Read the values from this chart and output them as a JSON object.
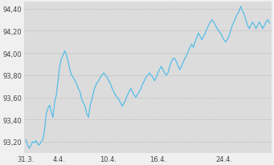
{
  "y_min": 93.1,
  "y_max": 94.46,
  "yticks": [
    93.2,
    93.4,
    93.6,
    93.8,
    94.0,
    94.2,
    94.4
  ],
  "ytick_labels": [
    "93,20",
    "93,40",
    "93,60",
    "93,80",
    "94,00",
    "94,20",
    "94,40"
  ],
  "xtick_labels": [
    "31.3.",
    "4.4.",
    "10.4.",
    "16.4.",
    "24.4."
  ],
  "xtick_positions": [
    0,
    4,
    11,
    18,
    26
  ],
  "line_color": "#55bde8",
  "bg_color": "#f0f0f0",
  "plot_bg": "#f0f0f0",
  "grid_color": "#bbbbbb",
  "stripe_color": "#dcdcdc",
  "stripe_ranges": [
    [
      1.5,
      3.5
    ],
    [
      6.5,
      8.5
    ],
    [
      8.5,
      11.5
    ],
    [
      13.5,
      15.5
    ],
    [
      15.5,
      18.5
    ],
    [
      20.5,
      22.5
    ],
    [
      22.5,
      25.5
    ],
    [
      27.5,
      29.5
    ]
  ],
  "n_days": 30,
  "y_values": [
    93.22,
    93.17,
    93.14,
    93.17,
    93.2,
    93.19,
    93.21,
    93.18,
    93.17,
    93.2,
    93.22,
    93.3,
    93.45,
    93.5,
    93.53,
    93.47,
    93.42,
    93.56,
    93.62,
    93.75,
    93.88,
    93.95,
    93.98,
    94.02,
    93.98,
    93.92,
    93.85,
    93.8,
    93.78,
    93.75,
    93.72,
    93.68,
    93.65,
    93.58,
    93.55,
    93.52,
    93.45,
    93.42,
    93.53,
    93.58,
    93.65,
    93.7,
    93.73,
    93.75,
    93.78,
    93.8,
    93.82,
    93.8,
    93.78,
    93.75,
    93.72,
    93.68,
    93.65,
    93.62,
    93.6,
    93.58,
    93.55,
    93.52,
    93.55,
    93.58,
    93.62,
    93.65,
    93.68,
    93.65,
    93.62,
    93.6,
    93.63,
    93.65,
    93.68,
    93.72,
    93.75,
    93.78,
    93.8,
    93.82,
    93.8,
    93.78,
    93.75,
    93.78,
    93.82,
    93.85,
    93.88,
    93.85,
    93.82,
    93.8,
    93.82,
    93.88,
    93.92,
    93.95,
    93.95,
    93.92,
    93.88,
    93.85,
    93.88,
    93.92,
    93.95,
    93.98,
    94.02,
    94.05,
    94.08,
    94.05,
    94.1,
    94.14,
    94.18,
    94.15,
    94.12,
    94.15,
    94.18,
    94.22,
    94.25,
    94.28,
    94.3,
    94.28,
    94.25,
    94.22,
    94.2,
    94.18,
    94.15,
    94.12,
    94.1,
    94.12,
    94.15,
    94.2,
    94.25,
    94.28,
    94.32,
    94.35,
    94.38,
    94.42,
    94.38,
    94.35,
    94.3,
    94.25,
    94.22,
    94.25,
    94.28,
    94.25,
    94.22,
    94.25,
    94.28,
    94.25,
    94.22,
    94.25,
    94.28,
    94.3,
    94.27
  ]
}
